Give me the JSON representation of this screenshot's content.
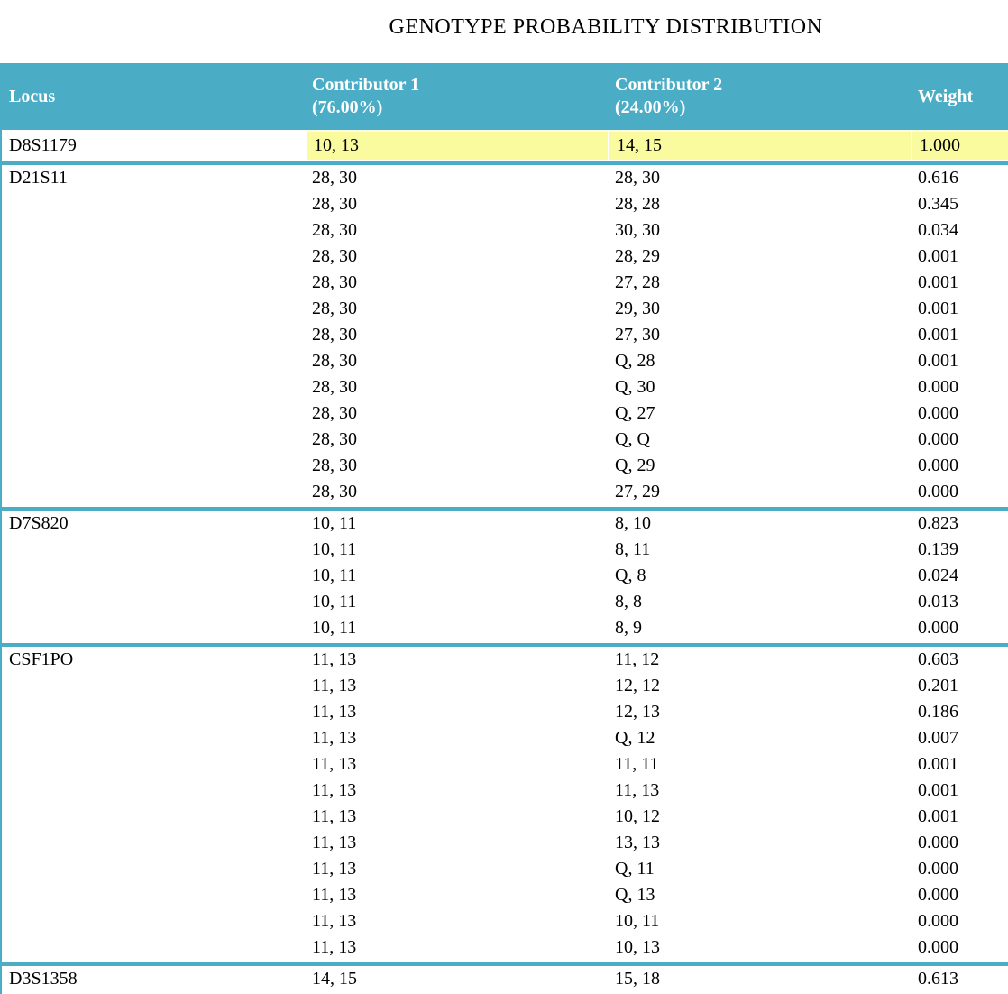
{
  "title": "GENOTYPE PROBABILITY DISTRIBUTION",
  "colors": {
    "header_bg": "#4BACC6",
    "header_text": "#FFFFFF",
    "highlight_bg": "#FAFA9E",
    "row_bg": "#FFFFFF",
    "text": "#000000"
  },
  "header": {
    "locus": "Locus",
    "contributor1_line1": "Contributor 1",
    "contributor1_line2": "(76.00%)",
    "contributor2_line1": "Contributor 2",
    "contributor2_line2": "(24.00%)",
    "weight": "Weight"
  },
  "sections": [
    {
      "locus": "D8S1179",
      "highlight": true,
      "rows": [
        [
          "10, 13",
          "14, 15",
          "1.000"
        ]
      ]
    },
    {
      "locus": "D21S11",
      "highlight": false,
      "rows": [
        [
          "28, 30",
          "28, 30",
          "0.616"
        ],
        [
          "28, 30",
          "28, 28",
          "0.345"
        ],
        [
          "28, 30",
          "30, 30",
          "0.034"
        ],
        [
          "28, 30",
          "28, 29",
          "0.001"
        ],
        [
          "28, 30",
          "27, 28",
          "0.001"
        ],
        [
          "28, 30",
          "29, 30",
          "0.001"
        ],
        [
          "28, 30",
          "27, 30",
          "0.001"
        ],
        [
          "28, 30",
          "Q, 28",
          "0.001"
        ],
        [
          "28, 30",
          "Q, 30",
          "0.000"
        ],
        [
          "28, 30",
          "Q, 27",
          "0.000"
        ],
        [
          "28, 30",
          "Q, Q",
          "0.000"
        ],
        [
          "28, 30",
          "Q, 29",
          "0.000"
        ],
        [
          "28, 30",
          "27, 29",
          "0.000"
        ]
      ]
    },
    {
      "locus": "D7S820",
      "highlight": false,
      "rows": [
        [
          "10, 11",
          "8, 10",
          "0.823"
        ],
        [
          "10, 11",
          "8, 11",
          "0.139"
        ],
        [
          "10, 11",
          "Q, 8",
          "0.024"
        ],
        [
          "10, 11",
          "8, 8",
          "0.013"
        ],
        [
          "10, 11",
          "8, 9",
          "0.000"
        ]
      ]
    },
    {
      "locus": "CSF1PO",
      "highlight": false,
      "rows": [
        [
          "11, 13",
          "11, 12",
          "0.603"
        ],
        [
          "11, 13",
          "12, 12",
          "0.201"
        ],
        [
          "11, 13",
          "12, 13",
          "0.186"
        ],
        [
          "11, 13",
          "Q, 12",
          "0.007"
        ],
        [
          "11, 13",
          "11, 11",
          "0.001"
        ],
        [
          "11, 13",
          "11, 13",
          "0.001"
        ],
        [
          "11, 13",
          "10, 12",
          "0.001"
        ],
        [
          "11, 13",
          "13, 13",
          "0.000"
        ],
        [
          "11, 13",
          "Q, 11",
          "0.000"
        ],
        [
          "11, 13",
          "Q, 13",
          "0.000"
        ],
        [
          "11, 13",
          "10, 11",
          "0.000"
        ],
        [
          "11, 13",
          "10, 13",
          "0.000"
        ]
      ]
    },
    {
      "locus": "D3S1358",
      "highlight": false,
      "partial": true,
      "rows": [
        [
          "14, 15",
          "15, 18",
          "0.613"
        ]
      ]
    }
  ]
}
